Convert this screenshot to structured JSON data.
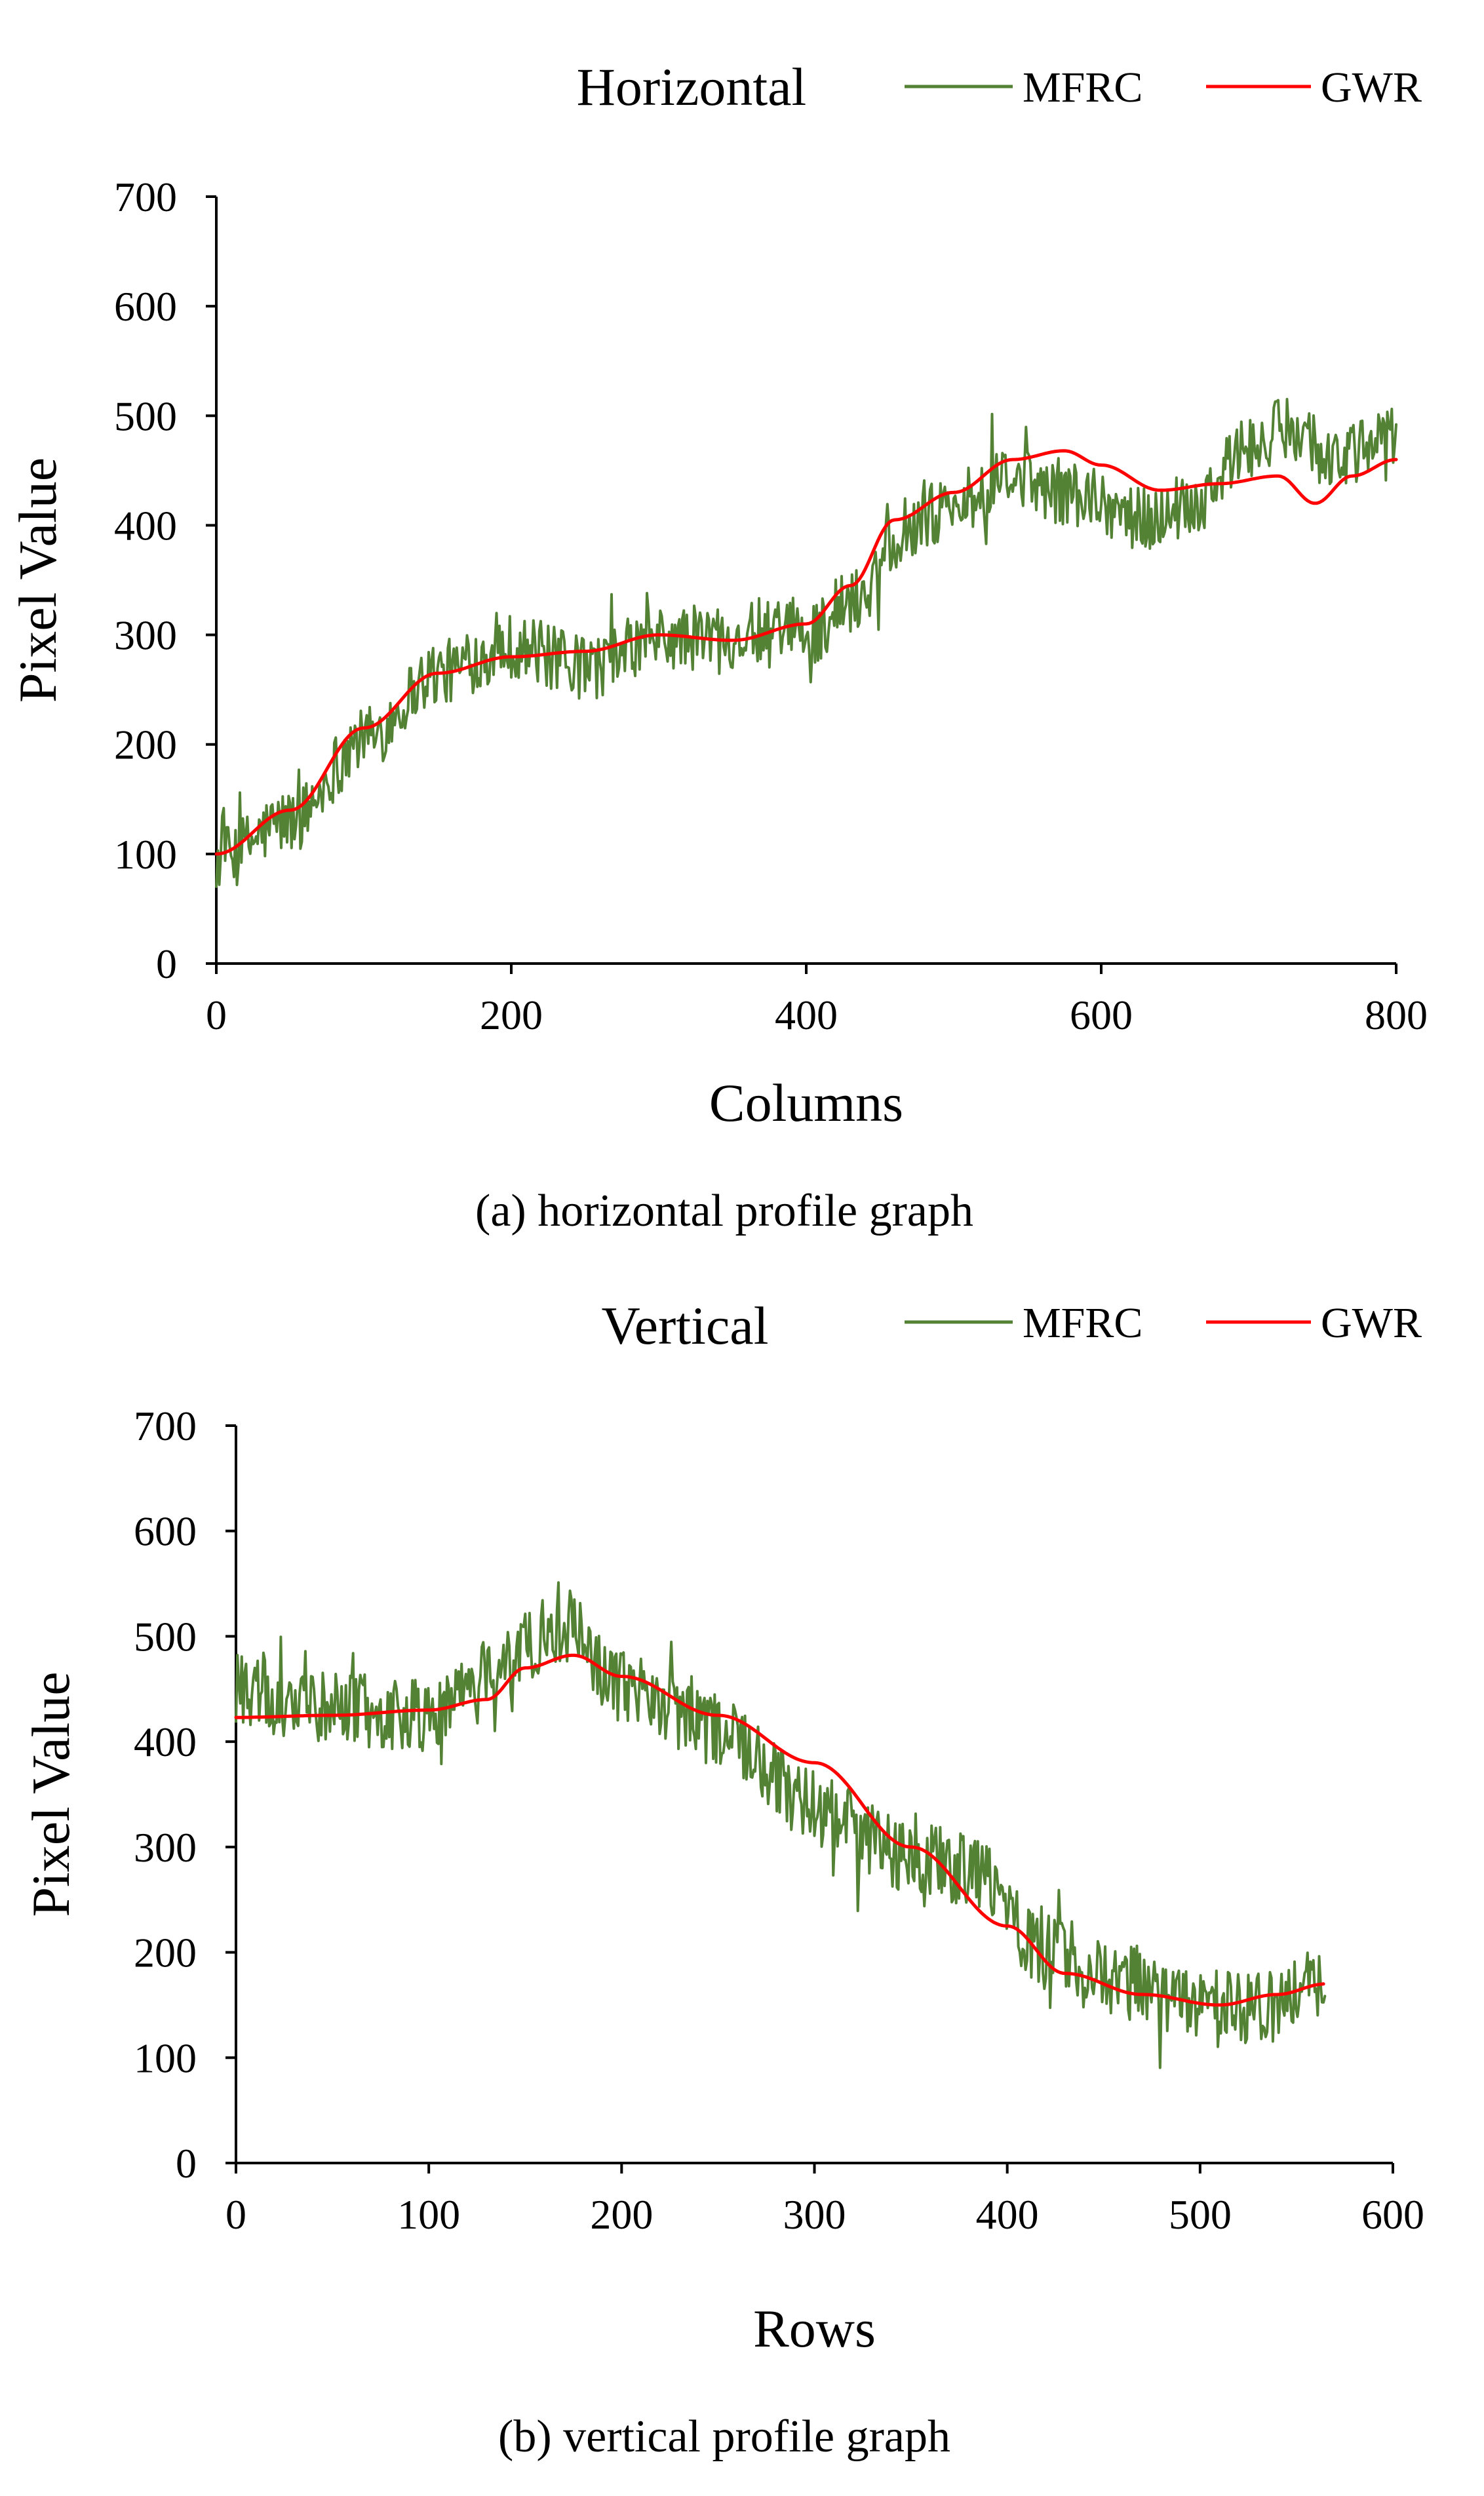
{
  "chart_data": [
    {
      "type": "line",
      "title": "Horizontal",
      "xlabel": "Columns",
      "ylabel": "Pixel Value",
      "caption": "(a) horizontal profile graph",
      "xlim": [
        0,
        800
      ],
      "ylim": [
        0,
        700
      ],
      "xticks": [
        0,
        200,
        400,
        600,
        800
      ],
      "yticks": [
        0,
        100,
        200,
        300,
        400,
        500,
        600,
        700
      ],
      "legend_position": "top-right",
      "grid": false,
      "series": [
        {
          "name": "MFRC",
          "color": "#548235",
          "noise_amplitude": 30,
          "x": [
            0,
            50,
            100,
            150,
            200,
            250,
            300,
            350,
            400,
            430,
            470,
            500,
            540,
            580,
            600,
            630,
            660,
            700,
            730,
            760,
            800
          ],
          "y": [
            95,
            130,
            205,
            265,
            290,
            270,
            295,
            300,
            300,
            330,
            400,
            420,
            440,
            430,
            420,
            405,
            420,
            470,
            490,
            460,
            480
          ]
        },
        {
          "name": "GWR",
          "color": "#ff0000",
          "noise_amplitude": 0,
          "x": [
            0,
            50,
            100,
            150,
            200,
            250,
            300,
            350,
            400,
            430,
            460,
            500,
            540,
            575,
            600,
            640,
            680,
            720,
            745,
            770,
            800
          ],
          "y": [
            100,
            140,
            215,
            265,
            280,
            285,
            300,
            295,
            310,
            345,
            405,
            430,
            460,
            468,
            455,
            432,
            438,
            445,
            420,
            445,
            460
          ]
        }
      ]
    },
    {
      "type": "line",
      "title": "Vertical",
      "xlabel": "Rows",
      "ylabel": "Pixel Value",
      "caption": "(b) vertical profile graph",
      "xlim": [
        0,
        600
      ],
      "ylim": [
        0,
        700
      ],
      "xticks": [
        0,
        100,
        200,
        300,
        400,
        500,
        600
      ],
      "yticks": [
        0,
        100,
        200,
        300,
        400,
        500,
        600,
        700
      ],
      "legend_position": "top-right",
      "grid": false,
      "series": [
        {
          "name": "MFRC",
          "color": "#548235",
          "noise_amplitude": 35,
          "x": [
            0,
            50,
            100,
            140,
            170,
            200,
            250,
            300,
            350,
            380,
            420,
            450,
            500,
            530,
            565
          ],
          "y": [
            450,
            430,
            425,
            480,
            510,
            450,
            410,
            340,
            290,
            280,
            200,
            175,
            150,
            145,
            175
          ]
        },
        {
          "name": "GWR",
          "color": "#ff0000",
          "noise_amplitude": 0,
          "x": [
            0,
            50,
            100,
            130,
            150,
            175,
            200,
            250,
            300,
            350,
            400,
            430,
            470,
            510,
            540,
            565
          ],
          "y": [
            423,
            425,
            430,
            440,
            470,
            482,
            462,
            425,
            380,
            300,
            225,
            180,
            160,
            150,
            160,
            170
          ]
        }
      ]
    }
  ]
}
